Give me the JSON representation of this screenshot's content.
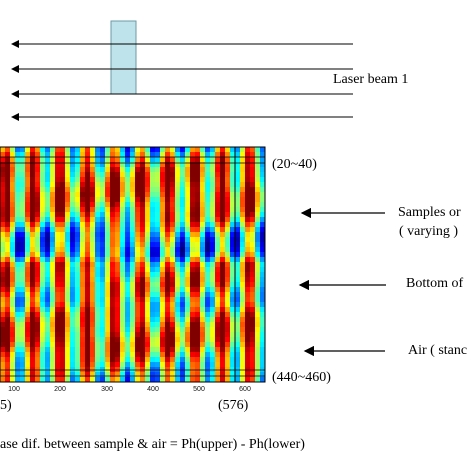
{
  "top_diagram": {
    "laser_label": "Laser beam 1",
    "beam_count": 4,
    "sample_color": "#bfe3ea"
  },
  "heatmap": {
    "colormap": "jet",
    "x_ticks": [
      "100",
      "200",
      "300",
      "400",
      "500",
      "600"
    ],
    "row_labels": {
      "top": "(20~40)",
      "bottom": "(440~460)"
    },
    "col_labels": {
      "left": "5)",
      "right": "(576)"
    }
  },
  "annotations": {
    "samples": "Samples or",
    "varying": "( varying )",
    "bottom": "Bottom of",
    "air": "Air ( stanc"
  },
  "caption": "ase dif. between sample & air = Ph(upper) - Ph(lower)"
}
